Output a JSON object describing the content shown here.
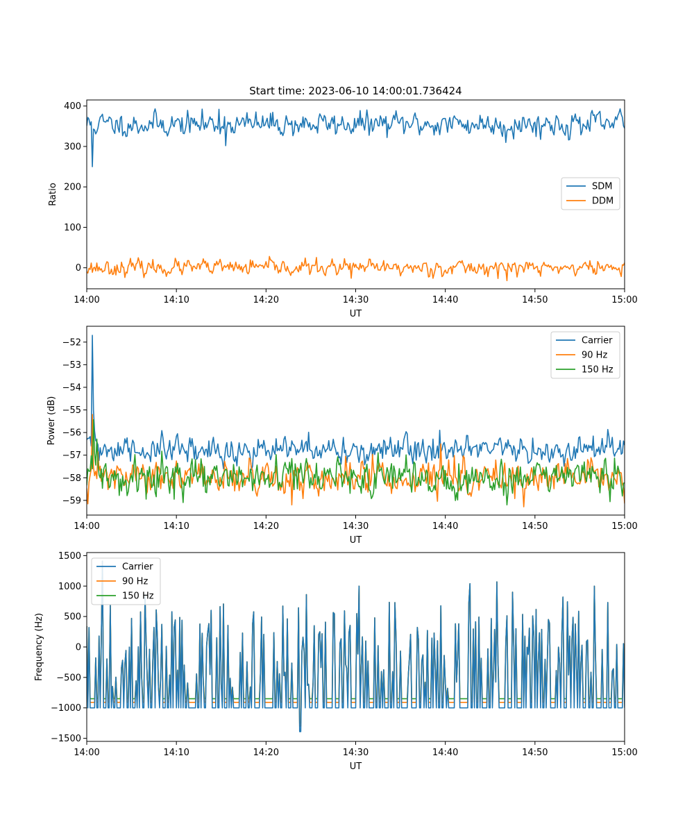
{
  "chart_data": [
    {
      "type": "line",
      "title": "Start time: 2023-06-10 14:00:01.736424",
      "xlabel": "UT",
      "ylabel": "Ratio",
      "xticks": [
        "14:00",
        "14:10",
        "14:20",
        "14:30",
        "14:40",
        "14:50",
        "15:00"
      ],
      "xlim_minutes": [
        0,
        60
      ],
      "ylim": [
        -52,
        415
      ],
      "yticks": [
        0,
        100,
        200,
        300,
        400
      ],
      "legend": "center-right",
      "series": [
        {
          "name": "SDM",
          "color": "#1f77b4",
          "base": 355,
          "noise": 14,
          "seed": 11,
          "spikes": [
            [
              0.6,
              250
            ],
            [
              15.5,
              302
            ],
            [
              46.8,
              310
            ],
            [
              14.8,
              392
            ],
            [
              59.5,
              393
            ]
          ]
        },
        {
          "name": "DDM",
          "color": "#ff7f0e",
          "base": 0,
          "noise": 9,
          "seed": 23,
          "spikes": [
            [
              46.9,
              -32
            ],
            [
              29.5,
              -26
            ],
            [
              24.4,
              24
            ]
          ]
        }
      ]
    },
    {
      "type": "line",
      "xlabel": "UT",
      "ylabel": "Power (dB)",
      "xticks": [
        "14:00",
        "14:10",
        "14:20",
        "14:30",
        "14:40",
        "14:50",
        "15:00"
      ],
      "xlim_minutes": [
        0,
        60
      ],
      "ylim": [
        -59.65,
        -51.3
      ],
      "yticks": [
        -59,
        -58,
        -57,
        -56,
        -55,
        -54,
        -53,
        -52
      ],
      "legend": "top-right",
      "series": [
        {
          "name": "Carrier",
          "color": "#1f77b4",
          "base": -56.8,
          "noise": 0.3,
          "seed": 31,
          "spikes": [
            [
              0.6,
              -51.7
            ],
            [
              0.7,
              -55.4
            ],
            [
              39.4,
              -55.9
            ]
          ]
        },
        {
          "name": "90 Hz",
          "color": "#ff7f0e",
          "base": -58.0,
          "noise": 0.35,
          "seed": 47,
          "spikes": [
            [
              0.6,
              -55.2
            ],
            [
              39.5,
              -56.5
            ],
            [
              22.9,
              -59.2
            ]
          ]
        },
        {
          "name": "150 Hz",
          "color": "#2ca02c",
          "base": -58.0,
          "noise": 0.38,
          "seed": 59,
          "spikes": [
            [
              0.7,
              -56.0
            ],
            [
              46.9,
              -59.2
            ]
          ]
        }
      ]
    },
    {
      "type": "line",
      "xlabel": "UT",
      "ylabel": "Frequency (Hz)",
      "xticks": [
        "14:00",
        "14:10",
        "14:20",
        "14:30",
        "14:40",
        "14:50",
        "15:00"
      ],
      "xlim_minutes": [
        0,
        60
      ],
      "ylim": [
        -1550,
        1550
      ],
      "yticks": [
        -1500,
        -1000,
        -500,
        0,
        500,
        1000,
        1500
      ],
      "legend": "top-left",
      "series": [
        {
          "name": "Carrier",
          "color": "#1f77b4",
          "floor": -1000,
          "seed": 71
        },
        {
          "name": "90 Hz",
          "color": "#ff7f0e",
          "floor": -910,
          "seed": 71
        },
        {
          "name": "150 Hz",
          "color": "#2ca02c",
          "floor": -850,
          "seed": 71
        }
      ]
    }
  ]
}
